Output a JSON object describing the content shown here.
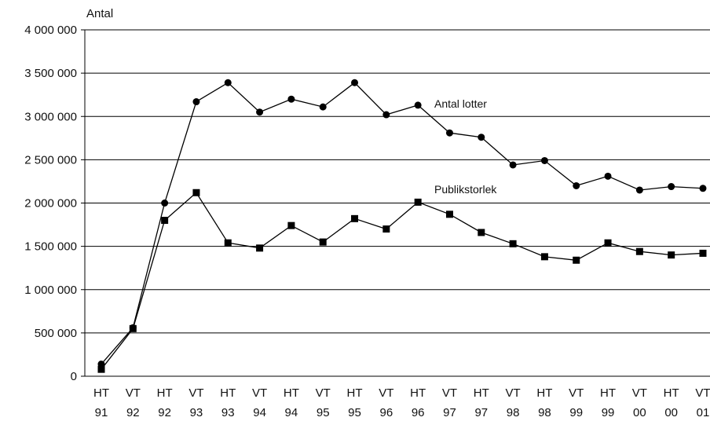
{
  "chart_data": {
    "type": "line",
    "ylabel": "Antal",
    "ylim": [
      0,
      4000000
    ],
    "yticks": [
      0,
      500000,
      1000000,
      1500000,
      2000000,
      2500000,
      3000000,
      3500000,
      4000000
    ],
    "ytick_labels": [
      "0",
      "500 000",
      "1 000 000",
      "1 500 000",
      "2 000 000",
      "2 500 000",
      "3 000 000",
      "3 500 000",
      "4 000 000"
    ],
    "grid": true,
    "categories": [
      {
        "top": "HT",
        "bottom": "91"
      },
      {
        "top": "VT",
        "bottom": "92"
      },
      {
        "top": "HT",
        "bottom": "92"
      },
      {
        "top": "VT",
        "bottom": "93"
      },
      {
        "top": "HT",
        "bottom": "93"
      },
      {
        "top": "VT",
        "bottom": "94"
      },
      {
        "top": "HT",
        "bottom": "94"
      },
      {
        "top": "VT",
        "bottom": "95"
      },
      {
        "top": "HT",
        "bottom": "95"
      },
      {
        "top": "VT",
        "bottom": "96"
      },
      {
        "top": "HT",
        "bottom": "96"
      },
      {
        "top": "VT",
        "bottom": "97"
      },
      {
        "top": "HT",
        "bottom": "97"
      },
      {
        "top": "VT",
        "bottom": "98"
      },
      {
        "top": "HT",
        "bottom": "98"
      },
      {
        "top": "VT",
        "bottom": "99"
      },
      {
        "top": "HT",
        "bottom": "99"
      },
      {
        "top": "VT",
        "bottom": "00"
      },
      {
        "top": "HT",
        "bottom": "00"
      },
      {
        "top": "VT",
        "bottom": "01"
      }
    ],
    "series": [
      {
        "name": "Antal lotter",
        "marker": "circle",
        "color": "#000000",
        "values": [
          140000,
          560000,
          2000000,
          3170000,
          3390000,
          3050000,
          3200000,
          3110000,
          3390000,
          3020000,
          3130000,
          2810000,
          2760000,
          2440000,
          2490000,
          2200000,
          2310000,
          2150000,
          2190000,
          2170000
        ]
      },
      {
        "name": "Publikstorlek",
        "marker": "square",
        "color": "#000000",
        "values": [
          80000,
          550000,
          1800000,
          2120000,
          1540000,
          1480000,
          1740000,
          1550000,
          1820000,
          1700000,
          2010000,
          1870000,
          1660000,
          1530000,
          1380000,
          1340000,
          1540000,
          1440000,
          1400000,
          1420000
        ]
      }
    ]
  }
}
